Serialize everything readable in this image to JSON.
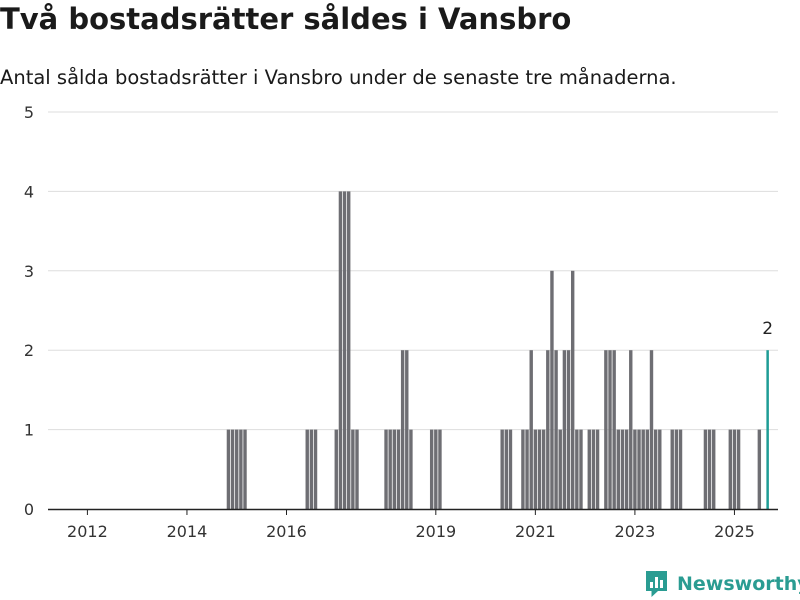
{
  "title": "Två bostadsrätter såldes i Vansbro",
  "subtitle": "Antal sålda bostadsrätter i Vansbro under de senaste tre månaderna.",
  "brand": {
    "name": "Newsworthy",
    "icon": "newsworthy-logo-icon"
  },
  "colors": {
    "bar": "#6e6e73",
    "highlight": "#1e9c95",
    "grid": "#dddddd",
    "axis": "#222222",
    "brand": "#2a9c92"
  },
  "chart_data": {
    "type": "bar",
    "title": "Två bostadsrätter såldes i Vansbro",
    "subtitle": "Antal sålda bostadsrätter i Vansbro under de senaste tre månaderna.",
    "x_unit": "month",
    "xlim": [
      "2011-04",
      "2025-11"
    ],
    "ylim": [
      0,
      5
    ],
    "y_ticks": [
      0,
      1,
      2,
      3,
      4,
      5
    ],
    "x_ticks": [
      "2012",
      "2014",
      "2016",
      "2019",
      "2021",
      "2023",
      "2025"
    ],
    "x_tick_positions": [
      "2012-01",
      "2014-01",
      "2016-01",
      "2019-01",
      "2021-01",
      "2023-01",
      "2025-01"
    ],
    "grid": "horizontal",
    "series": [
      {
        "values": [
          {
            "x": "2014-11",
            "y": 1
          },
          {
            "x": "2014-12",
            "y": 1
          },
          {
            "x": "2015-01",
            "y": 1
          },
          {
            "x": "2015-02",
            "y": 1
          },
          {
            "x": "2015-03",
            "y": 1
          },
          {
            "x": "2016-06",
            "y": 1
          },
          {
            "x": "2016-07",
            "y": 1
          },
          {
            "x": "2016-08",
            "y": 1
          },
          {
            "x": "2017-01",
            "y": 1
          },
          {
            "x": "2017-02",
            "y": 4
          },
          {
            "x": "2017-03",
            "y": 4
          },
          {
            "x": "2017-04",
            "y": 4
          },
          {
            "x": "2017-05",
            "y": 1
          },
          {
            "x": "2017-06",
            "y": 1
          },
          {
            "x": "2018-01",
            "y": 1
          },
          {
            "x": "2018-02",
            "y": 1
          },
          {
            "x": "2018-03",
            "y": 1
          },
          {
            "x": "2018-04",
            "y": 1
          },
          {
            "x": "2018-05",
            "y": 2
          },
          {
            "x": "2018-06",
            "y": 2
          },
          {
            "x": "2018-07",
            "y": 1
          },
          {
            "x": "2018-12",
            "y": 1
          },
          {
            "x": "2019-01",
            "y": 1
          },
          {
            "x": "2019-02",
            "y": 1
          },
          {
            "x": "2020-05",
            "y": 1
          },
          {
            "x": "2020-06",
            "y": 1
          },
          {
            "x": "2020-07",
            "y": 1
          },
          {
            "x": "2020-10",
            "y": 1
          },
          {
            "x": "2020-11",
            "y": 1
          },
          {
            "x": "2020-12",
            "y": 2
          },
          {
            "x": "2021-01",
            "y": 1
          },
          {
            "x": "2021-02",
            "y": 1
          },
          {
            "x": "2021-03",
            "y": 1
          },
          {
            "x": "2021-04",
            "y": 2
          },
          {
            "x": "2021-05",
            "y": 3
          },
          {
            "x": "2021-06",
            "y": 2
          },
          {
            "x": "2021-07",
            "y": 1
          },
          {
            "x": "2021-08",
            "y": 2
          },
          {
            "x": "2021-09",
            "y": 2
          },
          {
            "x": "2021-10",
            "y": 3
          },
          {
            "x": "2021-11",
            "y": 1
          },
          {
            "x": "2021-12",
            "y": 1
          },
          {
            "x": "2022-02",
            "y": 1
          },
          {
            "x": "2022-03",
            "y": 1
          },
          {
            "x": "2022-04",
            "y": 1
          },
          {
            "x": "2022-06",
            "y": 2
          },
          {
            "x": "2022-07",
            "y": 2
          },
          {
            "x": "2022-08",
            "y": 2
          },
          {
            "x": "2022-09",
            "y": 1
          },
          {
            "x": "2022-10",
            "y": 1
          },
          {
            "x": "2022-11",
            "y": 1
          },
          {
            "x": "2022-12",
            "y": 2
          },
          {
            "x": "2023-01",
            "y": 1
          },
          {
            "x": "2023-02",
            "y": 1
          },
          {
            "x": "2023-03",
            "y": 1
          },
          {
            "x": "2023-04",
            "y": 1
          },
          {
            "x": "2023-05",
            "y": 2
          },
          {
            "x": "2023-06",
            "y": 1
          },
          {
            "x": "2023-07",
            "y": 1
          },
          {
            "x": "2023-10",
            "y": 1
          },
          {
            "x": "2023-11",
            "y": 1
          },
          {
            "x": "2023-12",
            "y": 1
          },
          {
            "x": "2024-06",
            "y": 1
          },
          {
            "x": "2024-07",
            "y": 1
          },
          {
            "x": "2024-08",
            "y": 1
          },
          {
            "x": "2024-12",
            "y": 1
          },
          {
            "x": "2025-01",
            "y": 1
          },
          {
            "x": "2025-02",
            "y": 1
          },
          {
            "x": "2025-07",
            "y": 1
          },
          {
            "x": "2025-09",
            "y": 2
          }
        ]
      }
    ],
    "highlight": {
      "x": "2025-09",
      "y": 2,
      "label": "2"
    }
  }
}
